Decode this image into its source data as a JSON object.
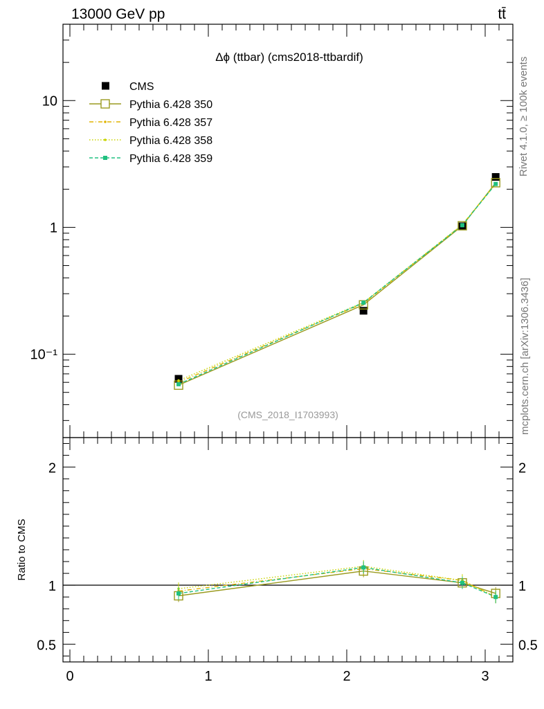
{
  "header": {
    "energy_label": "13000 GeV pp",
    "process_label": "tt̄"
  },
  "side": {
    "rivet_label": "Rivet 4.1.0, ≥ 100k events",
    "source_label": "mcplots.cern.ch [arXiv:1306.3436]"
  },
  "colors": {
    "cms": "#000000",
    "s350": "#9a9a1e",
    "s357": "#e0b400",
    "s358": "#c8d400",
    "s359": "#20c080"
  },
  "chart_data": [
    {
      "type": "line",
      "title": "Δϕ (ttbar) (cms2018-ttbardif)",
      "watermark": "(CMS_2018_I1703993)",
      "yscale": "log",
      "xlim": [
        -0.05,
        3.2
      ],
      "ylim": [
        0.022,
        40
      ],
      "yticks": [
        {
          "value": 10,
          "label": "10"
        },
        {
          "value": 1,
          "label": "1"
        },
        {
          "value": 0.1,
          "label": "10⁻¹"
        }
      ],
      "legend_position": "top-left",
      "x": [
        0.785,
        2.121,
        2.835,
        3.076
      ],
      "series": [
        {
          "name": "CMS",
          "values": [
            0.064,
            0.22,
            1.02,
            2.5
          ]
        },
        {
          "name": "Pythia 6.428 350",
          "values": [
            0.057,
            0.245,
            1.03,
            2.25
          ]
        },
        {
          "name": "Pythia 6.428 357",
          "values": [
            0.06,
            0.252,
            1.05,
            2.22
          ]
        },
        {
          "name": "Pythia 6.428 358",
          "values": [
            0.062,
            0.256,
            1.05,
            2.2
          ]
        },
        {
          "name": "Pythia 6.428 359",
          "values": [
            0.058,
            0.255,
            1.04,
            2.2
          ]
        }
      ]
    },
    {
      "type": "line",
      "ylabel": "Ratio to CMS",
      "xlim": [
        -0.05,
        3.2
      ],
      "ylim": [
        0.35,
        2.25
      ],
      "xticks": [
        {
          "value": 0,
          "label": "0"
        },
        {
          "value": 1,
          "label": "1"
        },
        {
          "value": 2,
          "label": "2"
        },
        {
          "value": 3,
          "label": "3"
        }
      ],
      "yticks": [
        {
          "value": 2,
          "label": "2"
        },
        {
          "value": 1,
          "label": "1"
        },
        {
          "value": 0.5,
          "label": "0.5"
        }
      ],
      "reference_line": 1,
      "x": [
        0.785,
        2.121,
        2.835,
        3.076
      ],
      "series": [
        {
          "name": "Pythia 6.428 350",
          "values": [
            0.91,
            1.12,
            1.02,
            0.93
          ]
        },
        {
          "name": "Pythia 6.428 357",
          "values": [
            0.95,
            1.14,
            1.04,
            0.9
          ]
        },
        {
          "name": "Pythia 6.428 358",
          "values": [
            0.97,
            1.16,
            1.04,
            0.9
          ]
        },
        {
          "name": "Pythia 6.428 359",
          "values": [
            0.93,
            1.15,
            1.02,
            0.9
          ]
        }
      ]
    }
  ]
}
